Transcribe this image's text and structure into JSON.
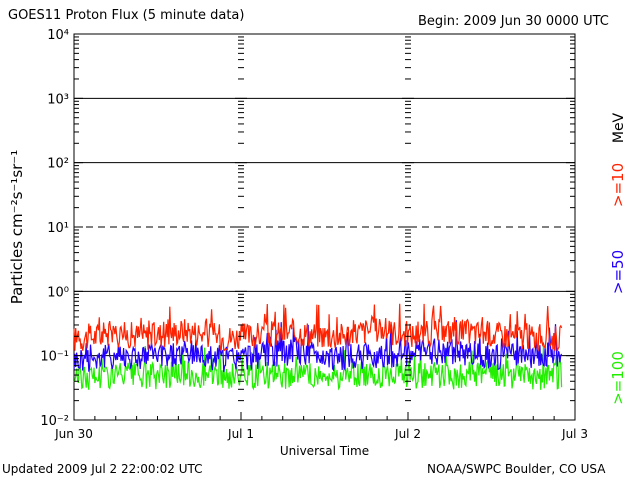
{
  "chart_data": {
    "type": "line",
    "title": "GOES11 Proton Flux (5 minute data)",
    "begin_label": "Begin: 2009 Jun 30 0000 UTC",
    "xlabel": "Universal Time",
    "ylabel": "Particles cm⁻²s⁻¹sr⁻¹",
    "unit_label": "MeV",
    "y_scale": "log",
    "ylim": [
      0.01,
      10000
    ],
    "y_ticks": [
      {
        "value": 10000,
        "label": "10⁴"
      },
      {
        "value": 1000,
        "label": "10³"
      },
      {
        "value": 100,
        "label": "10²"
      },
      {
        "value": 10,
        "label": "10¹"
      },
      {
        "value": 1,
        "label": "10⁰"
      },
      {
        "value": 0.1,
        "label": "10⁻¹"
      },
      {
        "value": 0.01,
        "label": "10⁻²"
      }
    ],
    "x_ticks": [
      "Jun 30",
      "Jul 1",
      "Jul 2",
      "Jul 3"
    ],
    "xlim_days": [
      0,
      3
    ],
    "threshold_lines": [
      {
        "value": 1000,
        "style": "solid"
      },
      {
        "value": 100,
        "style": "solid"
      },
      {
        "value": 10,
        "style": "dashed"
      },
      {
        "value": 1,
        "style": "solid"
      },
      {
        "value": 0.1,
        "style": "solid"
      }
    ],
    "grid": false,
    "series": [
      {
        "name": ">=10",
        "color": "#ff2200",
        "values": [
          0.18,
          0.22,
          0.2,
          0.25,
          0.19,
          0.21,
          0.23,
          0.2,
          0.26,
          0.21,
          0.24,
          0.22,
          0.2,
          0.19
        ]
      },
      {
        "name": ">=50",
        "color": "#2200ff",
        "values": [
          0.085,
          0.1,
          0.095,
          0.11,
          0.09,
          0.1,
          0.12,
          0.09,
          0.1,
          0.11,
          0.12,
          0.1,
          0.095,
          0.11
        ]
      },
      {
        "name": ">=100",
        "color": "#22ee00",
        "values": [
          0.045,
          0.05,
          0.048,
          0.052,
          0.046,
          0.05,
          0.049,
          0.047,
          0.051,
          0.05,
          0.048,
          0.052,
          0.046,
          0.049
        ]
      }
    ],
    "data_end_day": 2.92
  },
  "footer": {
    "updated": "Updated 2009 Jul  2 22:00:02 UTC",
    "source": "NOAA/SWPC Boulder, CO USA"
  }
}
